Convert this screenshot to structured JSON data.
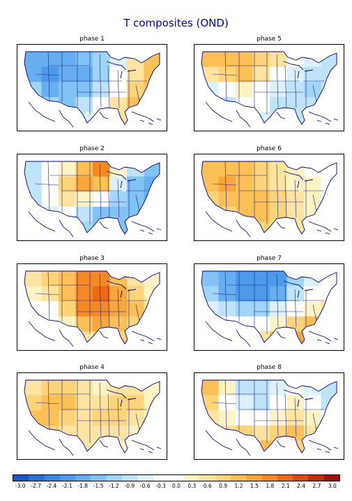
{
  "title": "T composites (OND)",
  "panels": [
    {
      "label": "phase 1",
      "pattern": [
        -1.6,
        -1.8,
        -1.6,
        -1.4,
        -1.2,
        -0.5,
        0.5,
        1.0,
        -1.6,
        -1.9,
        -1.8,
        -1.6,
        -1.1,
        -0.4,
        0.6,
        1.0,
        -1.2,
        -1.6,
        -1.5,
        -1.3,
        -0.9,
        0.0,
        0.9,
        1.0,
        -0.8,
        -1.2,
        -1.4,
        -1.0,
        -0.4,
        0.5,
        1.1,
        1.4,
        -0.3,
        -0.9,
        -1.1,
        -0.6,
        0.1,
        0.7,
        1.3,
        1.6
      ]
    },
    {
      "label": "phase 5",
      "pattern": [
        1.0,
        1.2,
        1.0,
        0.8,
        0.5,
        0.0,
        -0.5,
        -0.8,
        0.6,
        0.8,
        1.1,
        0.6,
        -0.2,
        -0.6,
        -0.9,
        -1.0,
        -0.6,
        -0.4,
        0.2,
        0.0,
        -0.6,
        -0.9,
        -1.1,
        -1.0,
        -1.0,
        -0.8,
        -0.4,
        -0.3,
        -0.8,
        -1.0,
        -1.0,
        -0.9,
        -0.8,
        -0.9,
        -0.6,
        -0.5,
        -0.8,
        -0.9,
        -0.8,
        -0.6
      ]
    },
    {
      "label": "phase 2",
      "pattern": [
        -0.8,
        -0.4,
        0.4,
        1.2,
        1.6,
        0.4,
        -0.8,
        -1.4,
        -0.9,
        -0.3,
        0.8,
        1.4,
        1.2,
        -0.6,
        -1.4,
        -1.6,
        -1.0,
        -0.4,
        0.6,
        0.4,
        -0.4,
        -1.2,
        -1.5,
        -1.6,
        -0.6,
        -0.6,
        -0.4,
        -0.8,
        -1.3,
        -1.5,
        -1.5,
        -1.3,
        -0.4,
        -0.5,
        -0.9,
        -1.2,
        -1.4,
        -1.3,
        -1.2,
        -0.8
      ]
    },
    {
      "label": "phase 6",
      "pattern": [
        1.0,
        1.2,
        1.0,
        0.8,
        0.6,
        0.3,
        0.1,
        -0.2,
        1.1,
        1.3,
        1.2,
        0.9,
        0.6,
        0.4,
        0.2,
        0.0,
        0.9,
        1.2,
        1.1,
        1.0,
        0.8,
        0.6,
        0.3,
        -0.2,
        0.5,
        0.8,
        1.0,
        1.1,
        0.9,
        0.6,
        0.4,
        0.2,
        0.2,
        0.5,
        0.8,
        0.9,
        0.8,
        0.6,
        0.5,
        0.4
      ]
    },
    {
      "label": "phase 3",
      "pattern": [
        0.6,
        0.8,
        1.0,
        1.6,
        1.8,
        1.2,
        0.6,
        0.2,
        0.2,
        0.6,
        1.2,
        1.8,
        2.0,
        1.4,
        0.8,
        0.4,
        -0.4,
        0.0,
        0.8,
        1.6,
        1.8,
        1.4,
        1.0,
        0.6,
        -0.6,
        -0.4,
        0.4,
        1.2,
        1.4,
        1.2,
        0.8,
        0.6,
        -0.2,
        0.0,
        0.3,
        0.6,
        0.9,
        0.8,
        0.5,
        0.3
      ]
    },
    {
      "label": "phase 7",
      "pattern": [
        -1.4,
        -1.8,
        -2.0,
        -2.1,
        -1.9,
        -1.2,
        -0.6,
        -0.2,
        -1.2,
        -1.6,
        -1.9,
        -2.0,
        -1.6,
        -0.8,
        -0.2,
        0.0,
        -0.6,
        -1.0,
        -1.2,
        -1.2,
        -0.6,
        0.0,
        0.4,
        0.6,
        0.0,
        -0.2,
        -0.4,
        -0.2,
        0.4,
        0.9,
        1.2,
        1.4,
        0.2,
        0.2,
        0.3,
        0.6,
        1.0,
        1.3,
        1.5,
        1.6
      ]
    },
    {
      "label": "phase 4",
      "pattern": [
        0.6,
        0.8,
        0.9,
        0.6,
        0.3,
        0.5,
        0.7,
        0.4,
        0.9,
        1.0,
        1.0,
        0.6,
        0.6,
        0.9,
        0.8,
        0.3,
        1.0,
        1.1,
        0.8,
        0.6,
        0.8,
        0.9,
        0.6,
        0.2,
        0.8,
        0.9,
        0.7,
        0.6,
        0.7,
        0.6,
        0.3,
        0.0,
        0.4,
        0.6,
        0.5,
        0.5,
        0.4,
        0.2,
        -0.1,
        -0.2
      ]
    },
    {
      "label": "phase 8",
      "pattern": [
        1.0,
        0.4,
        -0.8,
        -1.0,
        -0.6,
        -0.2,
        -0.6,
        -1.0,
        0.8,
        0.0,
        -0.6,
        -0.8,
        -0.4,
        0.2,
        -0.2,
        -0.8,
        0.6,
        0.4,
        0.0,
        -0.2,
        0.2,
        0.6,
        0.4,
        -0.2,
        0.4,
        0.6,
        0.8,
        0.6,
        0.8,
        1.0,
        0.6,
        0.2,
        0.2,
        0.6,
        0.9,
        1.0,
        1.0,
        0.8,
        0.5,
        0.2
      ]
    }
  ],
  "colorbar": {
    "colors": [
      "#1858c0",
      "#2a70d4",
      "#3a86e0",
      "#4f9ae8",
      "#66aeef",
      "#82c2f4",
      "#a0d4f8",
      "#bfe3fb",
      "#ddf1fd",
      "#ffffff",
      "#ffffff",
      "#fff3c4",
      "#fee4a0",
      "#fdd47a",
      "#fcc056",
      "#f9a63a",
      "#f48a26",
      "#ea6a18",
      "#d84a10",
      "#c02c0a",
      "#9a1206"
    ],
    "labels": [
      "-3.0",
      "-2.7",
      "-2.4",
      "-2.1",
      "-1.8",
      "-1.5",
      "-1.2",
      "-0.9",
      "-0.6",
      "-0.3",
      "0.0",
      "0.3",
      "0.6",
      "0.9",
      "1.2",
      "1.5",
      "1.8",
      "2.1",
      "2.4",
      "2.7",
      "3.0"
    ],
    "min": -3.0,
    "max": 3.0
  }
}
